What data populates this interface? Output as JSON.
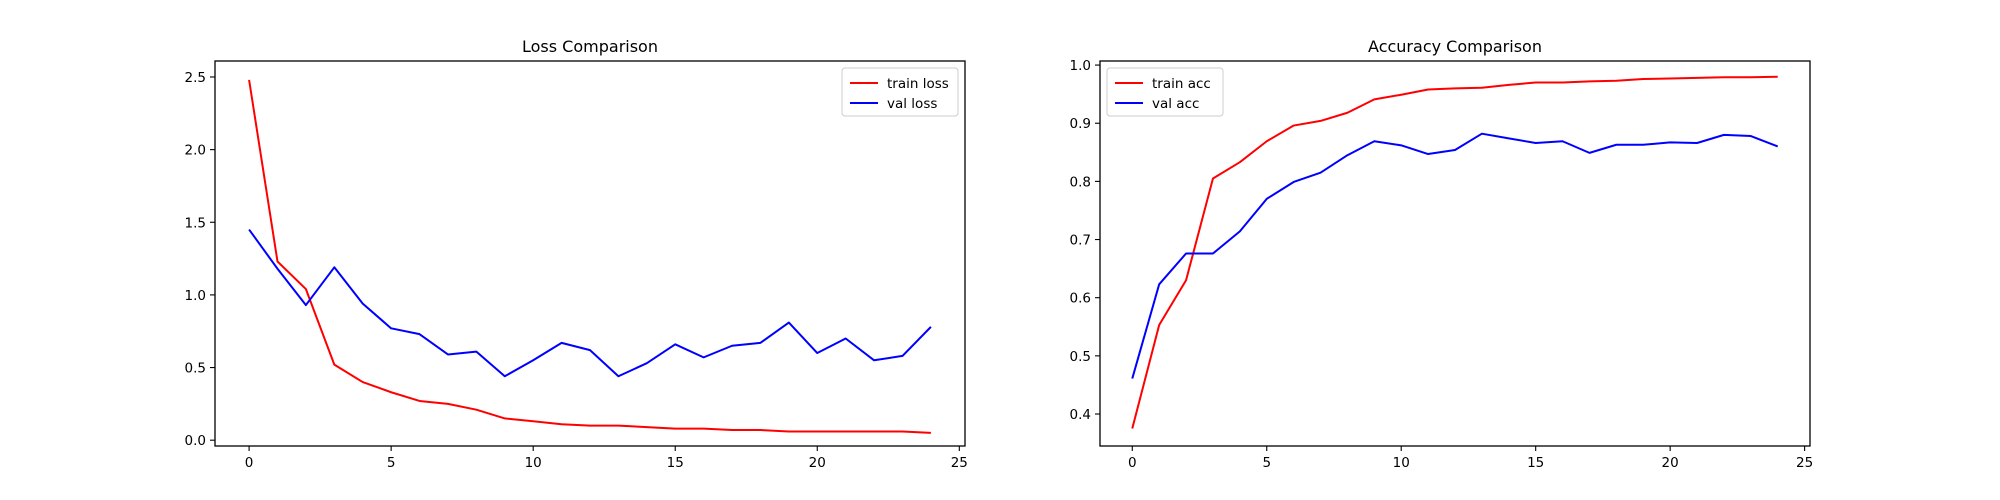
{
  "chart_data": [
    {
      "type": "line",
      "title": "Loss Comparison",
      "xlabel": "",
      "ylabel": "",
      "xlim": [
        -1.2,
        25.2
      ],
      "ylim": [
        -0.04,
        2.61
      ],
      "xticks": [
        0,
        5,
        10,
        15,
        20,
        25
      ],
      "xtick_labels": [
        "0",
        "5",
        "10",
        "15",
        "20",
        "25"
      ],
      "yticks": [
        0.0,
        0.5,
        1.0,
        1.5,
        2.0,
        2.5
      ],
      "ytick_labels": [
        "0.0",
        "0.5",
        "1.0",
        "1.5",
        "2.0",
        "2.5"
      ],
      "legend_position": "top-right",
      "x": [
        0,
        1,
        2,
        3,
        4,
        5,
        6,
        7,
        8,
        9,
        10,
        11,
        12,
        13,
        14,
        15,
        16,
        17,
        18,
        19,
        20,
        21,
        22,
        23,
        24
      ],
      "series": [
        {
          "name": "train loss",
          "color": "#ff0000",
          "values": [
            2.48,
            1.23,
            1.04,
            0.52,
            0.4,
            0.33,
            0.27,
            0.25,
            0.21,
            0.15,
            0.13,
            0.11,
            0.1,
            0.1,
            0.09,
            0.08,
            0.08,
            0.07,
            0.07,
            0.06,
            0.06,
            0.06,
            0.06,
            0.06,
            0.05
          ]
        },
        {
          "name": "val loss",
          "color": "#0000ff",
          "values": [
            1.45,
            1.18,
            0.93,
            1.19,
            0.94,
            0.77,
            0.73,
            0.59,
            0.61,
            0.44,
            0.55,
            0.67,
            0.62,
            0.44,
            0.53,
            0.66,
            0.57,
            0.65,
            0.67,
            0.81,
            0.6,
            0.7,
            0.55,
            0.58,
            0.78
          ]
        }
      ]
    },
    {
      "type": "line",
      "title": "Accuracy Comparison",
      "xlabel": "",
      "ylabel": "",
      "xlim": [
        -1.2,
        25.2
      ],
      "ylim": [
        0.345,
        1.007
      ],
      "xticks": [
        0,
        5,
        10,
        15,
        20,
        25
      ],
      "xtick_labels": [
        "0",
        "5",
        "10",
        "15",
        "20",
        "25"
      ],
      "yticks": [
        0.4,
        0.5,
        0.6,
        0.7,
        0.8,
        0.9,
        1.0
      ],
      "ytick_labels": [
        "0.4",
        "0.5",
        "0.6",
        "0.7",
        "0.8",
        "0.9",
        "1.0"
      ],
      "legend_position": "top-left",
      "x": [
        0,
        1,
        2,
        3,
        4,
        5,
        6,
        7,
        8,
        9,
        10,
        11,
        12,
        13,
        14,
        15,
        16,
        17,
        18,
        19,
        20,
        21,
        22,
        23,
        24
      ],
      "series": [
        {
          "name": "train acc",
          "color": "#ff0000",
          "values": [
            0.375,
            0.553,
            0.63,
            0.805,
            0.833,
            0.869,
            0.896,
            0.904,
            0.918,
            0.941,
            0.949,
            0.958,
            0.96,
            0.961,
            0.966,
            0.97,
            0.97,
            0.972,
            0.973,
            0.976,
            0.977,
            0.978,
            0.979,
            0.979,
            0.98
          ]
        },
        {
          "name": "val acc",
          "color": "#0000ff",
          "values": [
            0.461,
            0.623,
            0.676,
            0.676,
            0.714,
            0.77,
            0.799,
            0.815,
            0.845,
            0.869,
            0.862,
            0.847,
            0.854,
            0.882,
            0.874,
            0.866,
            0.869,
            0.849,
            0.863,
            0.863,
            0.867,
            0.866,
            0.88,
            0.878,
            0.86
          ]
        }
      ]
    }
  ]
}
